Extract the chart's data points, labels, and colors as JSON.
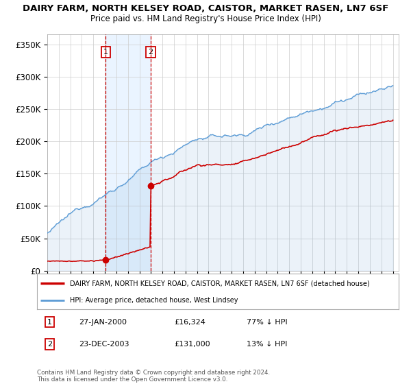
{
  "title": "DAIRY FARM, NORTH KELSEY ROAD, CAISTOR, MARKET RASEN, LN7 6SF",
  "subtitle": "Price paid vs. HM Land Registry's House Price Index (HPI)",
  "ylabel_ticks": [
    "£0",
    "£50K",
    "£100K",
    "£150K",
    "£200K",
    "£250K",
    "£300K",
    "£350K"
  ],
  "ytick_values": [
    0,
    50000,
    100000,
    150000,
    200000,
    250000,
    300000,
    350000
  ],
  "ylim": [
    0,
    365000
  ],
  "sale1_date": "27-JAN-2000",
  "sale1_price": 16324,
  "sale1_label": "1",
  "sale1_year": 2000.07,
  "sale2_date": "23-DEC-2003",
  "sale2_price": 131000,
  "sale2_label": "2",
  "sale2_year": 2003.98,
  "hpi_label": "HPI: Average price, detached house, West Lindsey",
  "property_label": "DAIRY FARM, NORTH KELSEY ROAD, CAISTOR, MARKET RASEN, LN7 6SF (detached house)",
  "sale1_pct": "77%",
  "sale2_pct": "13%",
  "footnote_line1": "Contains HM Land Registry data © Crown copyright and database right 2024.",
  "footnote_line2": "This data is licensed under the Open Government Licence v3.0.",
  "red_color": "#cc0000",
  "blue_color": "#5b9bd5",
  "blue_fill": "#ddeeff",
  "shade_fill": "#ddeeff",
  "bg_color": "#ffffff",
  "grid_color": "#cccccc",
  "vline_color": "#cc0000",
  "title_fontsize": 9.5,
  "subtitle_fontsize": 8.5
}
